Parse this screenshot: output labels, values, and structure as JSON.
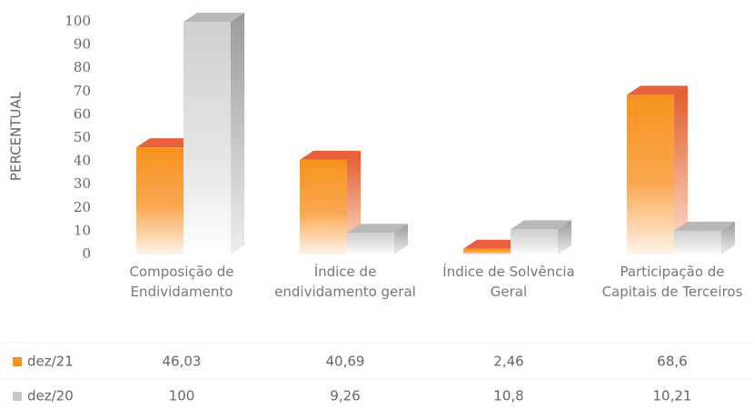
{
  "chart_data": {
    "type": "bar3d",
    "y_label": "PERCENTUAL",
    "categories": [
      "Composição de Endividamento",
      "Índice de endividamento geral",
      "Índice de Solvência Geral",
      "Participação de Capitais de Terceiros"
    ],
    "series": [
      {
        "name": "dez/21",
        "color": "#f7931e",
        "values": [
          46.03,
          40.69,
          2.46,
          68.6
        ],
        "value_labels": [
          "46,03",
          "40,69",
          "2,46",
          "68,6"
        ]
      },
      {
        "name": "dez/20",
        "color": "#c8c8c8",
        "values": [
          100,
          9.26,
          10.8,
          10.21
        ],
        "value_labels": [
          "100",
          "9,26",
          "10,8",
          "10,21"
        ]
      }
    ],
    "ylim": [
      0,
      100
    ],
    "yticks": [
      0,
      10,
      20,
      30,
      40,
      50,
      60,
      70,
      80,
      90,
      100
    ]
  }
}
